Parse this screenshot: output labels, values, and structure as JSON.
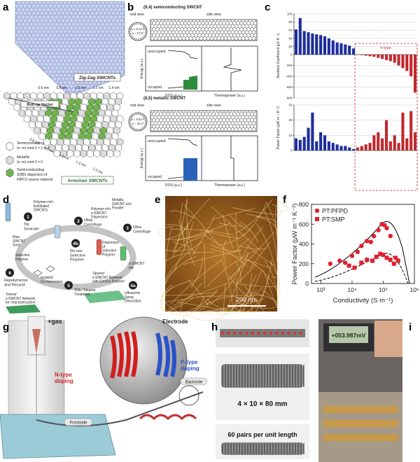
{
  "panels": {
    "a": {
      "letter": "a",
      "zigzag": "Zig-Zag SWCNTs",
      "zigzag_diameters": [
        "0.6 nm",
        "0.8 nm",
        "1.0 nm",
        "1.2 nm",
        "1.4 nm"
      ],
      "rollup": "Roll-up Vector",
      "armchair_diameters": [
        "0.6 nm",
        "0.8 nm",
        "1.0 nm",
        "1.2 nm",
        "1.4 nm"
      ],
      "armchair": "Armchair SWCNTs",
      "legend": [
        {
          "title": "Semiconducting",
          "detail": "(n−m) mod 3 = 1 or 2"
        },
        {
          "title": "Metallic",
          "detail": "(n−m) mod 3 = 0"
        },
        {
          "title": "Semiconducting",
          "detail": "SDBS dispersion of",
          "detail2": "HiPCO source material"
        }
      ]
    },
    "b": {
      "letter": "b",
      "tubes": [
        {
          "title": "(9,4) semiconducting SWCNT",
          "diameter": "d = 9.13 Å",
          "angle": "α = 17.5°"
        },
        {
          "title": "(8,5) metallic SWCNT",
          "diameter": "d = 9.02 Å",
          "angle": "α = 22.4°"
        }
      ],
      "end_view": "end view",
      "side_view": "side view",
      "unoccupied": "unoccupied",
      "occupied": "occupied",
      "energy": "Energy (a.u.)",
      "dos": "DOS (a.u.)",
      "thermopower": "Thermopower (a.u.)"
    },
    "c": {
      "letter": "c",
      "n_type": "n-type",
      "seebeck": {
        "ylabel": "Seebeck Coefficient (μV K⁻¹)",
        "ylim": [
          -800,
          100
        ],
        "yticks": [
          100,
          80,
          60,
          40,
          20,
          0,
          -200,
          -400,
          -600,
          -800
        ],
        "grid": true,
        "series": [
          {
            "color": "#1d2d9e",
            "values": [
              62,
              90,
              58,
              55,
              52,
              50,
              48,
              45,
              40,
              35,
              30,
              28,
              25,
              22,
              15
            ]
          },
          {
            "color": "#c0282d",
            "values": [
              -5,
              -10,
              -20,
              -30,
              -40,
              -60,
              -80,
              -100,
              -120,
              -150,
              -200,
              -250,
              -300,
              -400,
              -700
            ]
          }
        ]
      },
      "power_factor": {
        "ylabel": "Power Factor (μW m⁻¹ K⁻²)",
        "ylim": [
          0,
          30
        ],
        "yticks": [
          0,
          10,
          20,
          30
        ],
        "grid": true,
        "series": [
          {
            "color": "#1d2d9e",
            "values": [
              8,
              7,
              9,
              15,
              25,
              6,
              12,
              10,
              6,
              5,
              4,
              3,
              3,
              2,
              1
            ]
          },
          {
            "color": "#c0282d",
            "values": [
              2,
              3,
              4,
              5,
              10,
              12,
              8,
              20,
              6,
              10,
              5,
              25,
              8,
              26,
              12
            ]
          }
        ]
      }
    },
    "d": {
      "letter": "d",
      "tip": {
        "num": "1",
        "label": [
          "Tip",
          "Sonicate"
        ]
      },
      "uc1": {
        "num": "2",
        "label": [
          "Ultra-",
          "Centrifuge"
        ]
      },
      "uc2": {
        "num": "3",
        "label": [
          "Ultra-",
          "Centrifuge"
        ]
      },
      "reuse": {
        "num": "4b",
        "label": [
          "Re-use",
          "Selective",
          "Polymer"
        ]
      },
      "spray": {
        "num": "4a",
        "label": [
          "Ultrasonic",
          "Spray",
          "Deposition"
        ]
      },
      "tfa": {
        "num": "5",
        "label": [
          "TFA / Toluene",
          "Treatment"
        ]
      },
      "recycle": {
        "num": "6",
        "label": [
          "Repolymerize",
          "and Recycle"
        ]
      },
      "soot": [
        "Raw",
        "SWCNT",
        "Soot"
      ],
      "exfoliated": [
        "Polymer-rich",
        "Exfoliated",
        "SWCNTs"
      ],
      "metallic": [
        "Metallic",
        "SWCNT-rich",
        "Powder"
      ],
      "dispersion": [
        "Polymer-rich",
        "s-SWCNT",
        "Dispersion"
      ],
      "selective_dispersion": [
        "Dispersion",
        "of",
        "Selective",
        "Polymer"
      ],
      "ink": [
        "s-SWCNT",
        "Ink"
      ],
      "selective": [
        "Selective",
        "Polymer"
      ],
      "comonomers": [
        "Isolated",
        "Co-monomers"
      ],
      "sparse": [
        "'Sparse'",
        "s-SWCNT Network",
        "with Excess Polymer"
      ],
      "dense": [
        "'Dense'",
        "s-SWCNT Network",
        "for characterization"
      ]
    },
    "e": {
      "letter": "e",
      "scale": "200 nm"
    },
    "f": {
      "letter": "f",
      "chart": {
        "type": "scatter",
        "xlabel": "Conductivity (S m⁻¹)",
        "ylabel": "Power Factor (μW m⁻¹ K⁻²)",
        "xscale": "log",
        "xlim": [
          500,
          1000000
        ],
        "xticks": [
          {
            "value": 1000,
            "label": "10³"
          },
          {
            "value": 10000,
            "label": "10⁴"
          },
          {
            "value": 100000,
            "label": "10⁵"
          },
          {
            "value": 1000000,
            "label": "10⁶"
          }
        ],
        "ylim": [
          0,
          800
        ],
        "yticks": [
          0,
          200,
          400,
          600,
          800
        ],
        "legend": "upper left",
        "series": [
          {
            "name": "PT:PFPD",
            "color": "#e02030",
            "marker": "circle",
            "x": [
              2000,
              4000,
              6000,
              10000,
              15000,
              20000,
              30000,
              40000,
              50000,
              70000,
              90000,
              110000,
              130000,
              170000,
              250000
            ],
            "values": [
              200,
              230,
              210,
              280,
              320,
              380,
              430,
              420,
              480,
              540,
              600,
              590,
              560,
              480,
              260
            ]
          },
          {
            "name": "PT:SMP",
            "color": "#e02030",
            "marker": "square",
            "x": [
              8000,
              12000,
              20000,
              30000,
              45000,
              60000,
              80000,
              100000,
              130000,
              170000,
              220000,
              300000
            ],
            "values": [
              180,
              160,
              210,
              240,
              230,
              270,
              300,
              290,
              260,
              240,
              200,
              230
            ]
          }
        ]
      }
    },
    "g": {
      "letter": "g",
      "gas": "+gas",
      "electrode": "Electrode",
      "n_type": [
        "N-type",
        "doping"
      ],
      "frontside": "Frontside",
      "p_type": [
        "P-type",
        "doping"
      ],
      "backside": "Backside"
    },
    "h": {
      "letter": "h",
      "size": "4 × 10 × 80 mm",
      "pairs": "60 pairs per unit length"
    },
    "i": {
      "letter": "i",
      "reading": "+053.987mV"
    }
  }
}
